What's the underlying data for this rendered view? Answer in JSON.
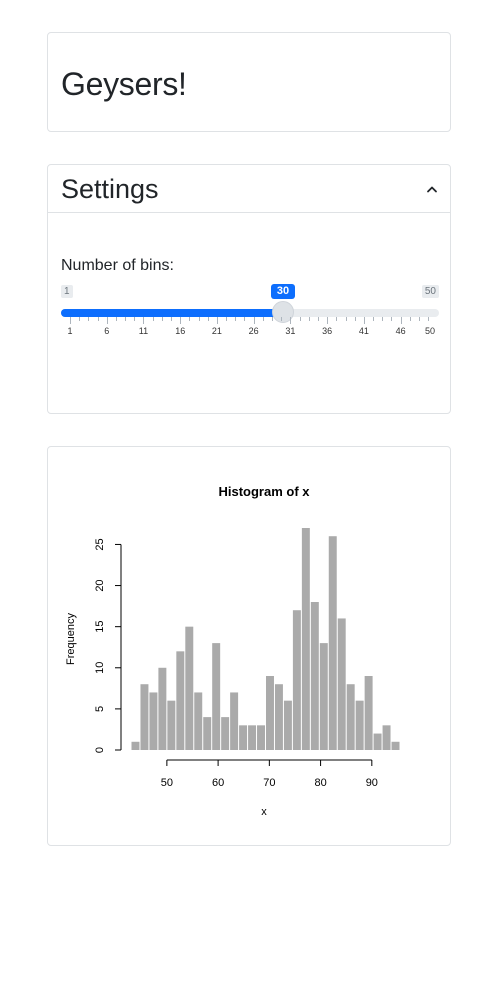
{
  "app": {
    "title": "Geysers!"
  },
  "settings": {
    "header": "Settings",
    "collapse_icon": "chevron-up-icon",
    "bins_slider": {
      "label": "Number of bins:",
      "min": 1,
      "max": 50,
      "value": 30,
      "min_label": "1",
      "max_label": "50",
      "value_label": "30",
      "tick_labels": [
        "1",
        "6",
        "11",
        "16",
        "21",
        "26",
        "31",
        "36",
        "41",
        "46",
        "50"
      ],
      "accent_color": "#0d6efd"
    }
  },
  "plot": {
    "chart_data": {
      "type": "bar",
      "title": "Histogram of x",
      "xlabel": "x",
      "ylabel": "Frequency",
      "bar_color": "#aaaaaa",
      "bin_width": 1.75,
      "bin_start": 43.0,
      "xlim": [
        43.0,
        95.5
      ],
      "ylim": [
        0,
        27
      ],
      "xticks": [
        50,
        60,
        70,
        80,
        90
      ],
      "yticks": [
        0,
        5,
        10,
        15,
        20,
        25
      ],
      "values": [
        1,
        8,
        7,
        10,
        6,
        12,
        15,
        7,
        4,
        13,
        4,
        7,
        3,
        3,
        3,
        9,
        8,
        6,
        17,
        27,
        18,
        13,
        26,
        16,
        8,
        6,
        9,
        2,
        3,
        1
      ]
    }
  }
}
